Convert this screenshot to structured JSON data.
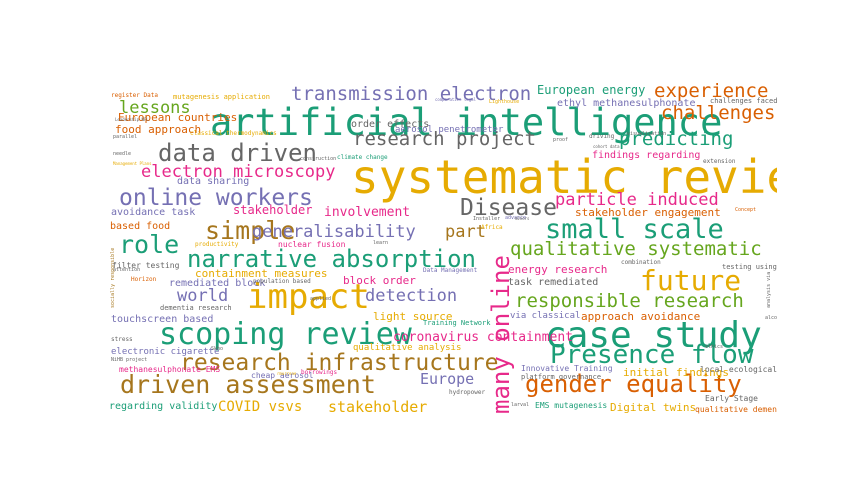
{
  "palette": {
    "teal": "#1b9e77",
    "orange": "#d95f02",
    "purple": "#7570b3",
    "pink": "#e7298a",
    "green": "#66a61e",
    "gold": "#e6ab02",
    "brown": "#a6761d",
    "gray": "#666666"
  },
  "words": [
    {
      "text": "systematic review",
      "color": "#e6ab02"
    },
    {
      "text": "artificial intelligence",
      "color": "#1b9e77"
    },
    {
      "text": "case study",
      "color": "#1b9e77"
    },
    {
      "text": "impact",
      "color": "#e6ab02"
    },
    {
      "text": "scoping review",
      "color": "#1b9e77"
    },
    {
      "text": "driven assessment",
      "color": "#a6761d"
    },
    {
      "text": "research infrastructure",
      "color": "#a6761d"
    },
    {
      "text": "narrative absorption",
      "color": "#1b9e77"
    },
    {
      "text": "data driven",
      "color": "#666666"
    },
    {
      "text": "online workers",
      "color": "#7570b3"
    },
    {
      "text": "gender equality",
      "color": "#d95f02"
    },
    {
      "text": "Presence flow",
      "color": "#1b9e77"
    },
    {
      "text": "many online",
      "color": "#e7298a"
    },
    {
      "text": "future",
      "color": "#e6ab02"
    },
    {
      "text": "small scale",
      "color": "#1b9e77"
    },
    {
      "text": "role",
      "color": "#1b9e77"
    },
    {
      "text": "Disease",
      "color": "#666666"
    },
    {
      "text": "simple",
      "color": "#a6761d"
    },
    {
      "text": "research project",
      "color": "#666666"
    },
    {
      "text": "transmission electron",
      "color": "#7570b3"
    },
    {
      "text": "qualitative systematic",
      "color": "#66a61e"
    },
    {
      "text": "responsible research",
      "color": "#66a61e"
    },
    {
      "text": "particle induced",
      "color": "#e7298a"
    },
    {
      "text": "electron microscopy",
      "color": "#e7298a"
    },
    {
      "text": "experience",
      "color": "#d95f02"
    },
    {
      "text": "challenges",
      "color": "#d95f02"
    },
    {
      "text": "predicting",
      "color": "#1b9e77"
    },
    {
      "text": "generalisability",
      "color": "#7570b3"
    },
    {
      "text": "part",
      "color": "#a6761d"
    },
    {
      "text": "detection",
      "color": "#7570b3"
    },
    {
      "text": "world",
      "color": "#7570b3"
    },
    {
      "text": "lessons",
      "color": "#66a61e"
    },
    {
      "text": "stakeholder",
      "color": "#e6ab02"
    },
    {
      "text": "COVID vsvs",
      "color": "#e6ab02"
    },
    {
      "text": "Europe",
      "color": "#7570b3"
    },
    {
      "text": "involvement",
      "color": "#e7298a"
    },
    {
      "text": "stakeholder engagement",
      "color": "#d95f02"
    },
    {
      "text": "coronavirus containment",
      "color": "#e7298a"
    },
    {
      "text": "European energy",
      "color": "#1b9e77"
    },
    {
      "text": "European countries",
      "color": "#d95f02"
    },
    {
      "text": "food approach",
      "color": "#d95f02"
    },
    {
      "text": "stakeholder",
      "color": "#e7298a"
    },
    {
      "text": "containment measures",
      "color": "#e6ab02"
    },
    {
      "text": "remediated block",
      "color": "#7570b3"
    },
    {
      "text": "block order",
      "color": "#e7298a"
    },
    {
      "text": "light source",
      "color": "#e6ab02"
    },
    {
      "text": "approach avoidance",
      "color": "#d95f02"
    },
    {
      "text": "energy research",
      "color": "#e7298a"
    },
    {
      "text": "task remediated",
      "color": "#666666"
    },
    {
      "text": "Digital twins",
      "color": "#e6ab02"
    },
    {
      "text": "initial findings",
      "color": "#e6ab02"
    },
    {
      "text": "findings regarding",
      "color": "#e7298a"
    },
    {
      "text": "ethyl methanesulphonate",
      "color": "#7570b3"
    },
    {
      "text": "avoidance task",
      "color": "#7570b3"
    },
    {
      "text": "touchscreen based",
      "color": "#7570b3"
    },
    {
      "text": "regarding validity",
      "color": "#1b9e77"
    },
    {
      "text": "data sharing",
      "color": "#7570b3"
    },
    {
      "text": "order effects",
      "color": "#666666"
    },
    {
      "text": "based food",
      "color": "#d95f02"
    },
    {
      "text": "EMS mutagenesis",
      "color": "#1b9e77"
    },
    {
      "text": "aerosol penetrometer",
      "color": "#7570b3"
    },
    {
      "text": "via classical",
      "color": "#7570b3"
    },
    {
      "text": "qualitative analysis",
      "color": "#e6ab02"
    },
    {
      "text": "electronic cigarette",
      "color": "#7570b3"
    },
    {
      "text": "methanesulphonate EMS",
      "color": "#e7298a"
    },
    {
      "text": "Innovative Training",
      "color": "#7570b3"
    },
    {
      "text": "Training Network",
      "color": "#1b9e77"
    },
    {
      "text": "Early Stage",
      "color": "#666666"
    },
    {
      "text": "qualitative dementia",
      "color": "#d95f02"
    },
    {
      "text": "local ecological",
      "color": "#666666"
    },
    {
      "text": "platform governance",
      "color": "#666666"
    },
    {
      "text": "cheap aerosol",
      "color": "#7570b3"
    },
    {
      "text": "nuclear fusion",
      "color": "#e7298a"
    },
    {
      "text": "population based",
      "color": "#666666"
    },
    {
      "text": "filter testing",
      "color": "#666666"
    },
    {
      "text": "productivity",
      "color": "#e6ab02"
    },
    {
      "text": "dementia research",
      "color": "#666666"
    },
    {
      "text": "challenges faced",
      "color": "#666666"
    },
    {
      "text": "testing using",
      "color": "#666666"
    },
    {
      "text": "mutagenesis application",
      "color": "#e6ab02"
    },
    {
      "text": "classical thermodynamics",
      "color": "#e6ab02"
    },
    {
      "text": "register Data",
      "color": "#d95f02"
    },
    {
      "text": "Leadership NFL",
      "color": "#666666"
    },
    {
      "text": "climate change",
      "color": "#1b9e77"
    },
    {
      "text": "Data Management",
      "color": "#7570b3"
    },
    {
      "text": "hydropower",
      "color": "#666666"
    },
    {
      "text": "borrowings",
      "color": "#e7298a"
    },
    {
      "text": "combination",
      "color": "#666666"
    },
    {
      "text": "visualisation",
      "color": "#666666"
    },
    {
      "text": "extension",
      "color": "#666666"
    },
    {
      "text": "driving",
      "color": "#666666"
    },
    {
      "text": "cohort data",
      "color": "#666666"
    },
    {
      "text": "comparative legal",
      "color": "#7570b3"
    },
    {
      "text": "Africa",
      "color": "#e6ab02"
    },
    {
      "text": "Installer",
      "color": "#666666"
    },
    {
      "text": "advance",
      "color": "#7570b3"
    },
    {
      "text": "construction",
      "color": "#666666"
    },
    {
      "text": "Horizon",
      "color": "#d95f02"
    },
    {
      "text": "attention",
      "color": "#666666"
    },
    {
      "text": "alcohol",
      "color": "#666666"
    },
    {
      "text": "ethics",
      "color": "#666666"
    },
    {
      "text": "stress",
      "color": "#666666"
    },
    {
      "text": "needle",
      "color": "#666666"
    },
    {
      "text": "parallel",
      "color": "#666666"
    },
    {
      "text": "Lighthouse",
      "color": "#e6ab02"
    },
    {
      "text": "minors",
      "color": "#666666"
    },
    {
      "text": "learn",
      "color": "#666666"
    },
    {
      "text": "applied",
      "color": "#666666"
    },
    {
      "text": "Skho",
      "color": "#666666"
    },
    {
      "text": "Concept",
      "color": "#d95f02"
    },
    {
      "text": "proof",
      "color": "#666666"
    },
    {
      "text": "larval",
      "color": "#666666"
    },
    {
      "text": "rmurrene",
      "color": "#e6ab02"
    },
    {
      "text": "Management Plans",
      "color": "#e6ab02"
    },
    {
      "text": "NiHB project",
      "color": "#666666"
    },
    {
      "text": "socially responsible",
      "color": "#a6761d"
    },
    {
      "text": "analysis via",
      "color": "#666666"
    }
  ]
}
